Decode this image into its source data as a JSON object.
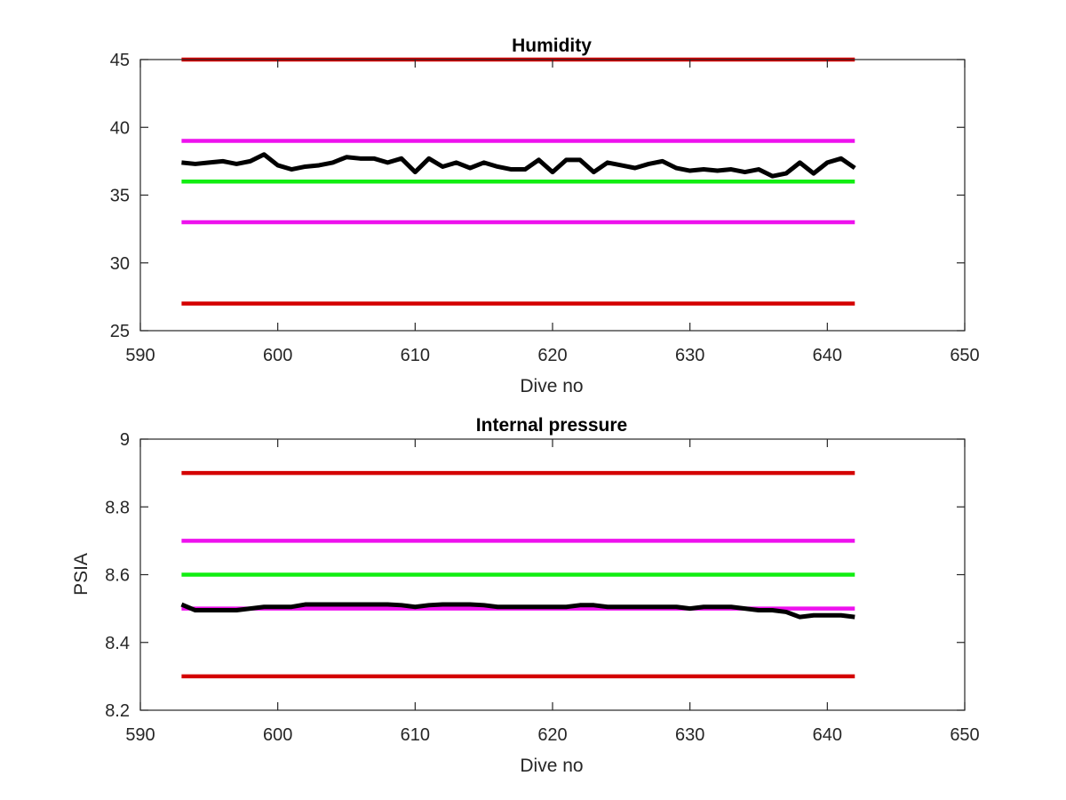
{
  "chart_data": [
    {
      "type": "line",
      "title": "Humidity",
      "xlabel": "Dive no",
      "ylabel": "",
      "xlim": [
        590,
        650
      ],
      "ylim": [
        25,
        45
      ],
      "xticks": [
        "590",
        "600",
        "610",
        "620",
        "630",
        "640",
        "650"
      ],
      "yticks": [
        "25",
        "30",
        "35",
        "40",
        "45"
      ],
      "grid": false,
      "colors": {
        "limit_red": "#d40000",
        "limit_magenta": "#ee11ee",
        "nominal_green": "#11ee11",
        "data": "#000000"
      },
      "series": [
        {
          "role": "data",
          "x": [
            593,
            594,
            595,
            596,
            597,
            598,
            599,
            600,
            601,
            602,
            603,
            604,
            605,
            606,
            607,
            608,
            609,
            610,
            611,
            612,
            613,
            614,
            615,
            616,
            617,
            618,
            619,
            620,
            621,
            622,
            623,
            624,
            625,
            626,
            627,
            628,
            629,
            630,
            631,
            632,
            633,
            634,
            635,
            636,
            637,
            638,
            639,
            640,
            641,
            642
          ],
          "y": [
            37.4,
            37.3,
            37.4,
            37.5,
            37.3,
            37.5,
            38.0,
            37.2,
            36.9,
            37.1,
            37.2,
            37.4,
            37.8,
            37.7,
            37.7,
            37.4,
            37.7,
            36.7,
            37.7,
            37.1,
            37.4,
            37.0,
            37.4,
            37.1,
            36.9,
            36.9,
            37.6,
            36.7,
            37.6,
            37.6,
            36.7,
            37.4,
            37.2,
            37.0,
            37.3,
            37.5,
            37.0,
            36.8,
            36.9,
            36.8,
            36.9,
            36.7,
            36.9,
            36.4,
            36.6,
            37.4,
            36.6,
            37.4,
            37.7,
            37.0
          ]
        },
        {
          "role": "upper-red-limit",
          "x": [
            593,
            642
          ],
          "y": [
            45,
            45
          ]
        },
        {
          "role": "upper-magenta-limit",
          "x": [
            593,
            642
          ],
          "y": [
            39,
            39
          ]
        },
        {
          "role": "green-nominal",
          "x": [
            593,
            642
          ],
          "y": [
            36,
            36
          ]
        },
        {
          "role": "lower-magenta-limit",
          "x": [
            593,
            642
          ],
          "y": [
            33,
            33
          ]
        },
        {
          "role": "lower-red-limit",
          "x": [
            593,
            642
          ],
          "y": [
            27,
            27
          ]
        }
      ]
    },
    {
      "type": "line",
      "title": "Internal pressure",
      "xlabel": "Dive no",
      "ylabel": "PSIA",
      "xlim": [
        590,
        650
      ],
      "ylim": [
        8.2,
        9.0
      ],
      "xticks": [
        "590",
        "600",
        "610",
        "620",
        "630",
        "640",
        "650"
      ],
      "yticks": [
        "8.2",
        "8.4",
        "8.6",
        "8.8",
        "9"
      ],
      "grid": false,
      "colors": {
        "limit_red": "#d40000",
        "limit_magenta": "#ee11ee",
        "nominal_green": "#11ee11",
        "data": "#000000"
      },
      "series": [
        {
          "role": "data",
          "x": [
            593,
            594,
            595,
            596,
            597,
            598,
            599,
            600,
            601,
            602,
            603,
            604,
            605,
            606,
            607,
            608,
            609,
            610,
            611,
            612,
            613,
            614,
            615,
            616,
            617,
            618,
            619,
            620,
            621,
            622,
            623,
            624,
            625,
            626,
            627,
            628,
            629,
            630,
            631,
            632,
            633,
            634,
            635,
            636,
            637,
            638,
            639,
            640,
            641,
            642
          ],
          "y": [
            8.512,
            8.495,
            8.495,
            8.495,
            8.495,
            8.5,
            8.505,
            8.505,
            8.505,
            8.512,
            8.512,
            8.512,
            8.512,
            8.512,
            8.512,
            8.512,
            8.51,
            8.505,
            8.51,
            8.512,
            8.512,
            8.512,
            8.51,
            8.505,
            8.505,
            8.505,
            8.505,
            8.505,
            8.505,
            8.51,
            8.51,
            8.505,
            8.505,
            8.505,
            8.505,
            8.505,
            8.505,
            8.5,
            8.505,
            8.505,
            8.505,
            8.5,
            8.495,
            8.495,
            8.49,
            8.475,
            8.48,
            8.48,
            8.48,
            8.475
          ]
        },
        {
          "role": "upper-red-limit",
          "x": [
            593,
            642
          ],
          "y": [
            8.9,
            8.9
          ]
        },
        {
          "role": "upper-magenta-limit",
          "x": [
            593,
            642
          ],
          "y": [
            8.7,
            8.7
          ]
        },
        {
          "role": "green-nominal",
          "x": [
            593,
            642
          ],
          "y": [
            8.6,
            8.6
          ]
        },
        {
          "role": "lower-magenta-limit",
          "x": [
            593,
            642
          ],
          "y": [
            8.5,
            8.5
          ]
        },
        {
          "role": "lower-red-limit",
          "x": [
            593,
            642
          ],
          "y": [
            8.3,
            8.3
          ]
        }
      ]
    }
  ]
}
